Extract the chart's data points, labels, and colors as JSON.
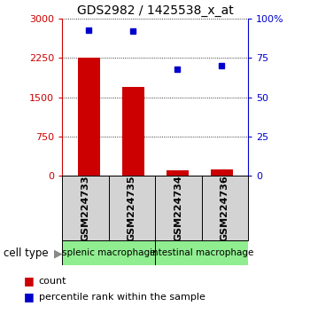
{
  "title": "GDS2982 / 1425538_x_at",
  "samples": [
    "GSM224733",
    "GSM224735",
    "GSM224734",
    "GSM224736"
  ],
  "counts": [
    2250,
    1700,
    100,
    120
  ],
  "percentiles": [
    93,
    92,
    68,
    70
  ],
  "left_ylim": [
    0,
    3000
  ],
  "right_ylim": [
    0,
    100
  ],
  "left_ticks": [
    0,
    750,
    1500,
    2250,
    3000
  ],
  "right_ticks": [
    0,
    25,
    50,
    75,
    100
  ],
  "right_tick_labels": [
    "0",
    "25",
    "50",
    "75",
    "100%"
  ],
  "bar_color": "#cc0000",
  "dot_color": "#0000cc",
  "left_axis_color": "#cc0000",
  "right_axis_color": "#0000cc",
  "group1_label": "splenic macrophage",
  "group2_label": "intestinal macrophage",
  "group_bg_color": "#90ee90",
  "sample_bg_color": "#d3d3d3",
  "bar_width": 0.5,
  "figsize": [
    3.5,
    3.54
  ],
  "title_fontsize": 10,
  "tick_fontsize": 8,
  "label_fontsize": 7.5,
  "legend_fontsize": 8
}
